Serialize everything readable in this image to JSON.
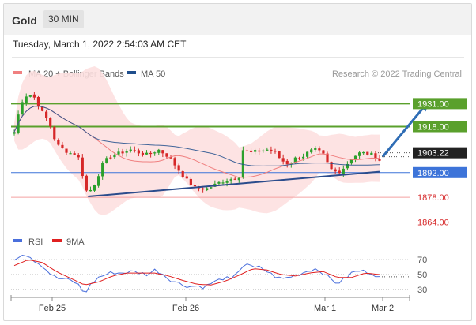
{
  "header": {
    "symbol": "Gold",
    "timeframe": "30 MIN"
  },
  "timestamp": "Tuesday, March 1, 2022 2:54:03 AM CET",
  "copyright": "Research © 2022 Trading Central",
  "colors": {
    "up": "#2ca02c",
    "down": "#d62728",
    "ma50": "#1f4e8c",
    "ma20": "#f08080",
    "bollinger_fill": "#fde0e0",
    "resistance": "#5aa02c",
    "support": "#3d74d9",
    "support_red": "#f4a0a0",
    "trend": "#2b4c8c",
    "arrow": "#2f6db5",
    "rsi": "#4a6fdc",
    "rsi_ma": "#e02020"
  },
  "chart_data": [
    {
      "type": "candlestick",
      "title": "",
      "legend": [
        {
          "name": "MA 20 + Bollinger Bands",
          "color": "#f08080"
        },
        {
          "name": "MA 50",
          "color": "#1f4e8c"
        }
      ],
      "x_ticks": [
        "Feb 25",
        "Feb 26",
        "Mar 1",
        "Mar 2"
      ],
      "ylim": [
        1858,
        1945
      ],
      "candle_count": 92,
      "close_path": [
        [
          0,
          1915
        ],
        [
          2,
          1932
        ],
        [
          4,
          1937
        ],
        [
          6,
          1934
        ],
        [
          8,
          1926
        ],
        [
          10,
          1920
        ],
        [
          12,
          1908
        ],
        [
          14,
          1905
        ],
        [
          16,
          1903
        ],
        [
          18,
          1902
        ],
        [
          19,
          1896
        ],
        [
          20,
          1884
        ],
        [
          21,
          1880
        ],
        [
          23,
          1886
        ],
        [
          25,
          1896
        ],
        [
          27,
          1901
        ],
        [
          30,
          1903
        ],
        [
          33,
          1905
        ],
        [
          36,
          1903
        ],
        [
          38,
          1902
        ],
        [
          41,
          1905
        ],
        [
          44,
          1901
        ],
        [
          47,
          1893
        ],
        [
          49,
          1888
        ],
        [
          51,
          1884
        ],
        [
          53,
          1883
        ],
        [
          55,
          1883
        ],
        [
          57,
          1885
        ],
        [
          59,
          1887
        ],
        [
          61,
          1888
        ],
        [
          63,
          1889
        ],
        [
          64,
          1890
        ],
        [
          65,
          1905
        ],
        [
          67,
          1903
        ],
        [
          69,
          1904
        ],
        [
          72,
          1905
        ],
        [
          74,
          1904
        ],
        [
          76,
          1899
        ],
        [
          78,
          1897
        ],
        [
          80,
          1900
        ],
        [
          82,
          1901
        ],
        [
          84,
          1904
        ],
        [
          86,
          1905
        ],
        [
          88,
          1902
        ],
        [
          90,
          1894
        ],
        [
          92,
          1892
        ],
        [
          94,
          1895
        ],
        [
          96,
          1900
        ],
        [
          98,
          1903
        ],
        [
          100,
          1903
        ],
        [
          102,
          1902
        ],
        [
          104,
          1899
        ]
      ],
      "price_levels": [
        {
          "label": "1931.00",
          "value": 1931,
          "kind": "resistance"
        },
        {
          "label": "1918.00",
          "value": 1918,
          "kind": "resistance"
        },
        {
          "label": "1903.22",
          "value": 1903.22,
          "kind": "last"
        },
        {
          "label": "1892.00",
          "value": 1892,
          "kind": "pivot"
        },
        {
          "label": "1878.00",
          "value": 1878,
          "kind": "support"
        },
        {
          "label": "1864.00",
          "value": 1864,
          "kind": "support"
        }
      ],
      "trendline": {
        "from": [
          21,
          1878.5
        ],
        "to": [
          104,
          1892.5
        ]
      },
      "forecast_arrow": {
        "from": [
          104,
          1901
        ],
        "to": [
          112,
          1931
        ]
      }
    },
    {
      "type": "line",
      "title": "",
      "legend": [
        {
          "name": "RSI",
          "color": "#4a6fdc"
        },
        {
          "name": "9MA",
          "color": "#e02020"
        }
      ],
      "ylim": [
        15,
        85
      ],
      "y_ticks": [
        "70",
        "50",
        "30"
      ],
      "rsi_path": [
        [
          0,
          70
        ],
        [
          2,
          78
        ],
        [
          4,
          76
        ],
        [
          6,
          68
        ],
        [
          8,
          62
        ],
        [
          10,
          52
        ],
        [
          12,
          45
        ],
        [
          14,
          44
        ],
        [
          16,
          42
        ],
        [
          18,
          38
        ],
        [
          20,
          24
        ],
        [
          22,
          38
        ],
        [
          24,
          46
        ],
        [
          26,
          50
        ],
        [
          28,
          53
        ],
        [
          30,
          52
        ],
        [
          34,
          54
        ],
        [
          38,
          50
        ],
        [
          40,
          56
        ],
        [
          42,
          52
        ],
        [
          44,
          44
        ],
        [
          46,
          40
        ],
        [
          48,
          36
        ],
        [
          50,
          34
        ],
        [
          52,
          35
        ],
        [
          54,
          33
        ],
        [
          56,
          38
        ],
        [
          58,
          42
        ],
        [
          60,
          46
        ],
        [
          62,
          42
        ],
        [
          64,
          56
        ],
        [
          66,
          66
        ],
        [
          68,
          58
        ],
        [
          70,
          60
        ],
        [
          72,
          54
        ],
        [
          74,
          48
        ],
        [
          76,
          44
        ],
        [
          78,
          46
        ],
        [
          80,
          49
        ],
        [
          82,
          52
        ],
        [
          84,
          56
        ],
        [
          86,
          58
        ],
        [
          88,
          52
        ],
        [
          90,
          44
        ],
        [
          92,
          38
        ],
        [
          94,
          44
        ],
        [
          96,
          52
        ],
        [
          98,
          55
        ],
        [
          100,
          54
        ],
        [
          102,
          52
        ],
        [
          104,
          46
        ]
      ],
      "ma_path": [
        [
          0,
          62
        ],
        [
          4,
          70
        ],
        [
          8,
          66
        ],
        [
          12,
          54
        ],
        [
          16,
          45
        ],
        [
          20,
          36
        ],
        [
          24,
          40
        ],
        [
          28,
          48
        ],
        [
          32,
          52
        ],
        [
          36,
          52
        ],
        [
          40,
          52
        ],
        [
          44,
          48
        ],
        [
          48,
          42
        ],
        [
          52,
          37
        ],
        [
          56,
          36
        ],
        [
          60,
          41
        ],
        [
          64,
          49
        ],
        [
          68,
          58
        ],
        [
          72,
          56
        ],
        [
          76,
          50
        ],
        [
          80,
          48
        ],
        [
          84,
          52
        ],
        [
          88,
          54
        ],
        [
          92,
          46
        ],
        [
          96,
          46
        ],
        [
          100,
          52
        ],
        [
          104,
          50
        ]
      ]
    }
  ]
}
